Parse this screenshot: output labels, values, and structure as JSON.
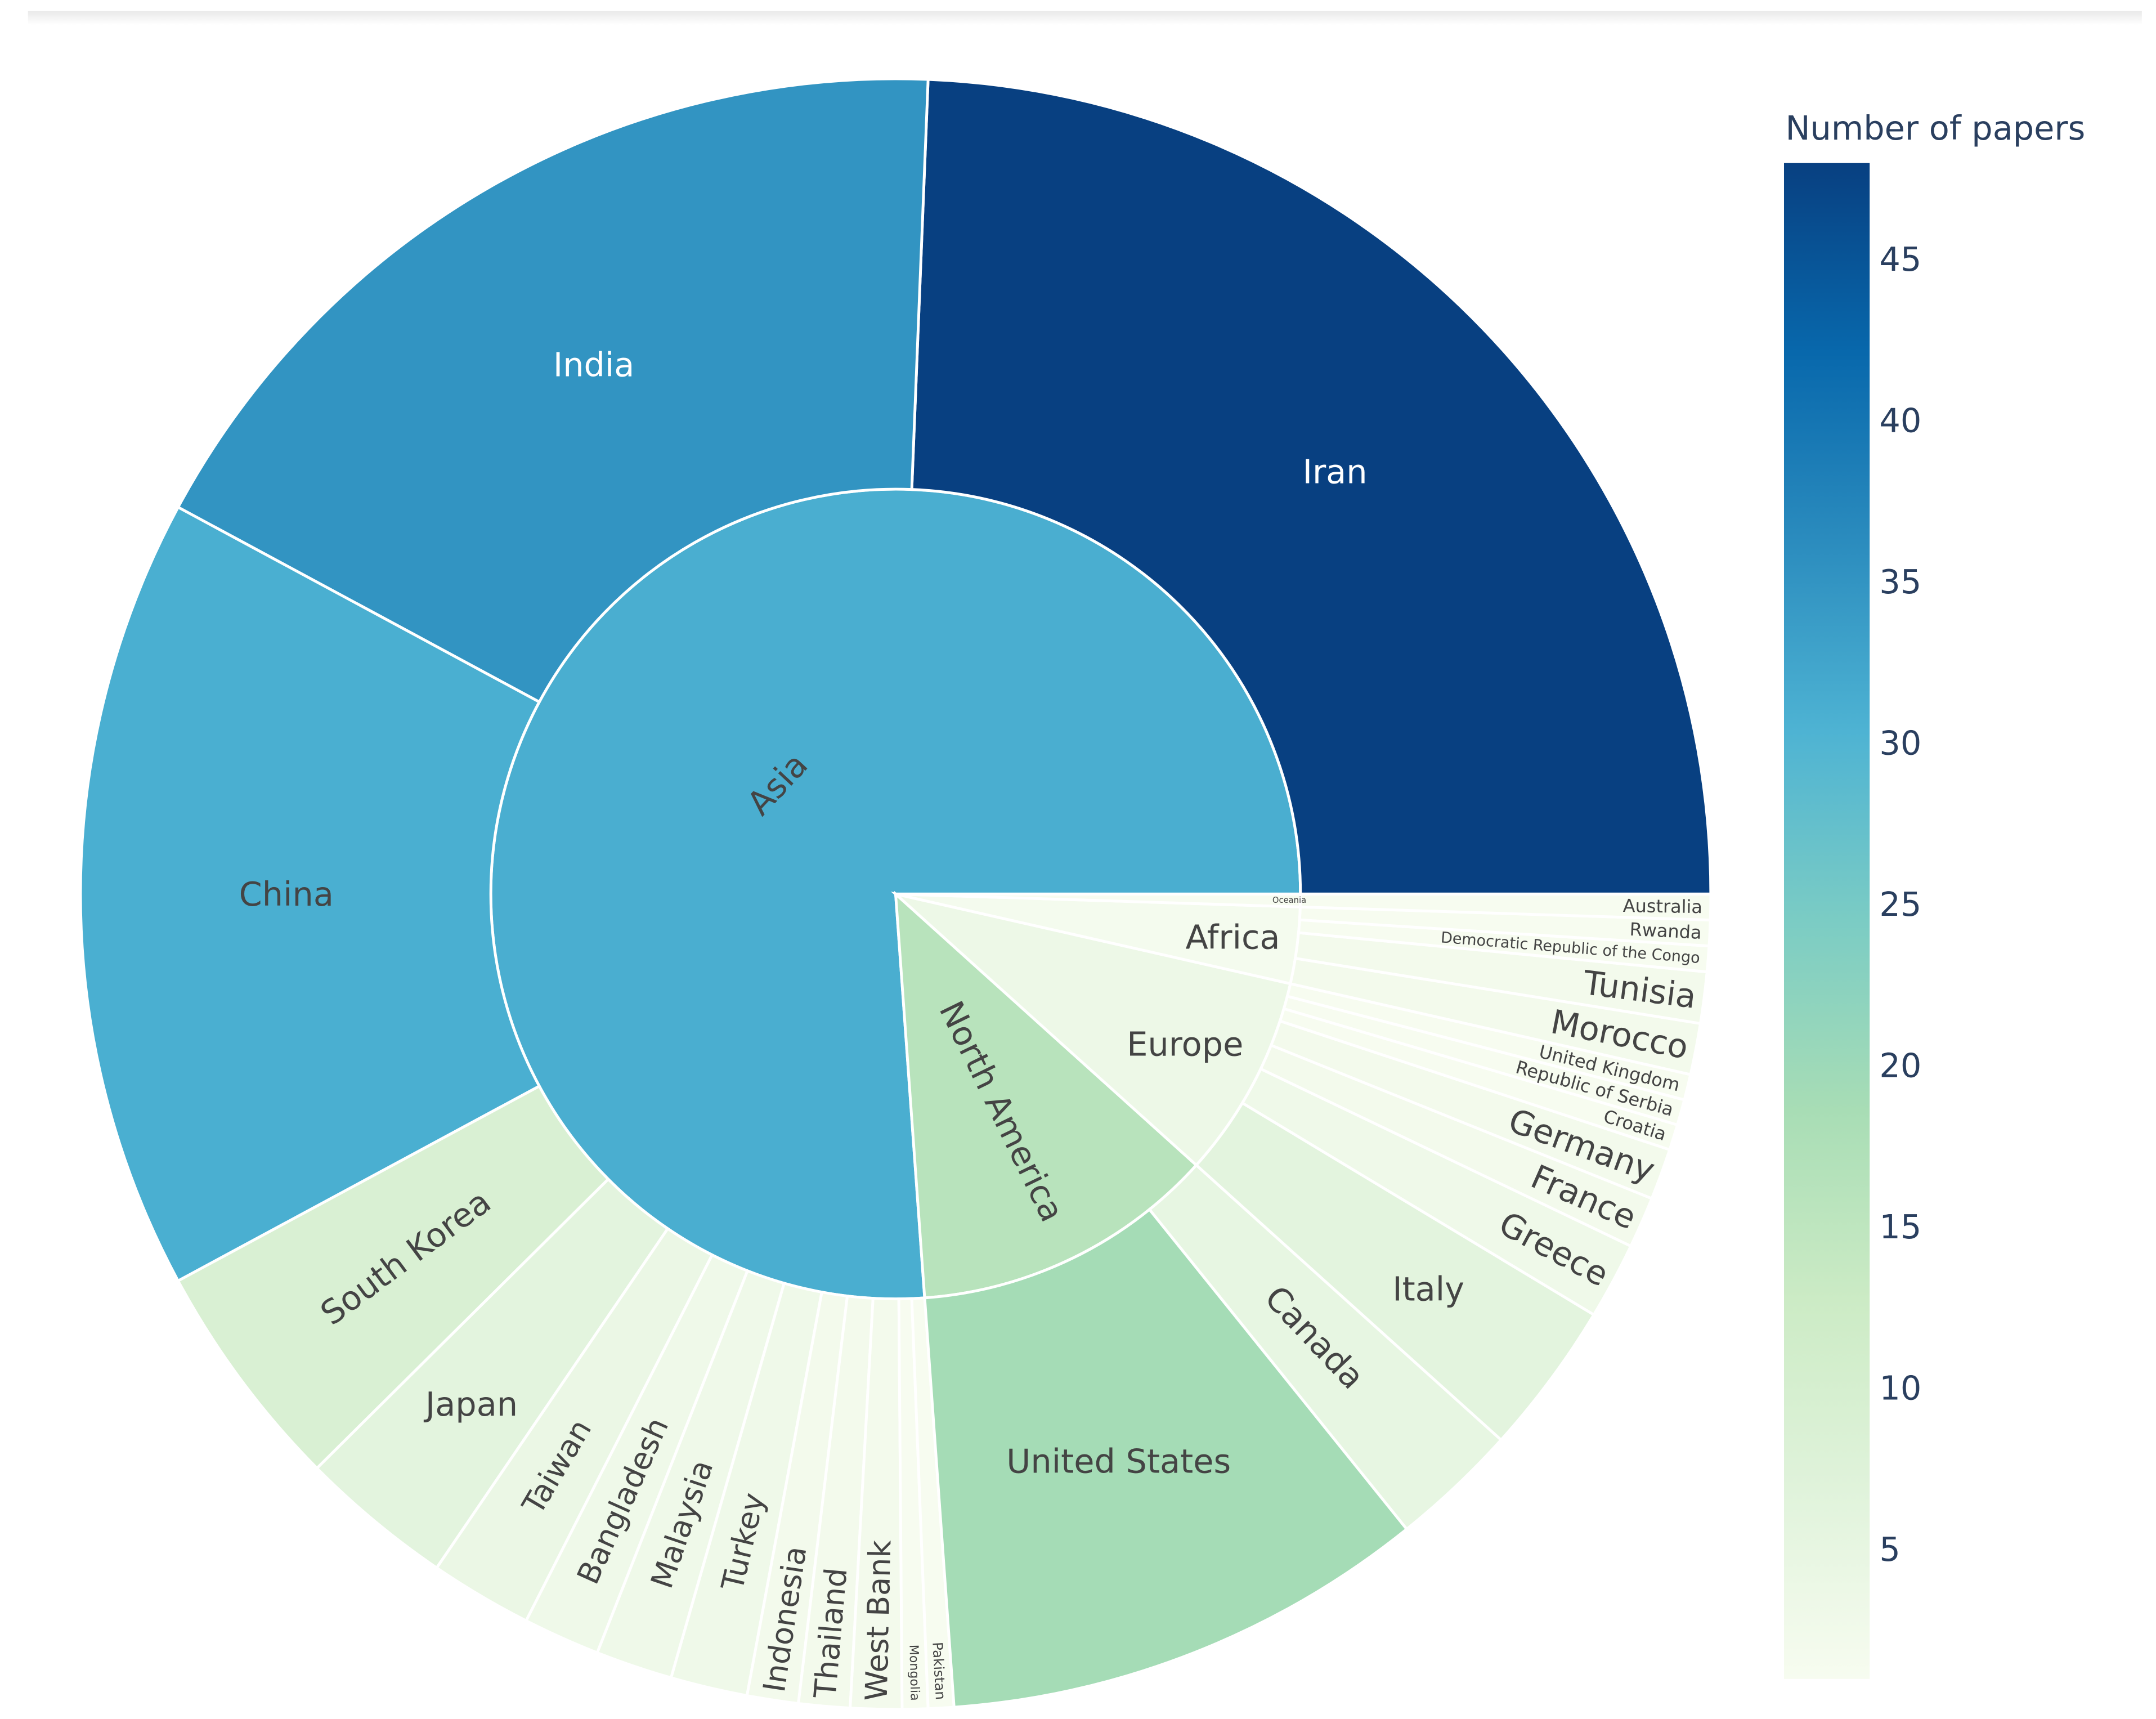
{
  "chart_data": {
    "type": "sunburst",
    "title": "",
    "colorbar": {
      "title": "Number of papers",
      "range": [
        1,
        48
      ],
      "ticks": [
        5,
        10,
        15,
        20,
        25,
        30,
        35,
        40,
        45
      ],
      "colorscale": "GnBu"
    },
    "continents": [
      {
        "name": "Asia",
        "children": [
          {
            "name": "Iran",
            "value": 48
          },
          {
            "name": "India",
            "value": 35
          },
          {
            "name": "China",
            "value": 31
          },
          {
            "name": "South Korea",
            "value": 9
          },
          {
            "name": "Japan",
            "value": 6
          },
          {
            "name": "Taiwan",
            "value": 4
          },
          {
            "name": "Bangladesh",
            "value": 3
          },
          {
            "name": "Malaysia",
            "value": 3
          },
          {
            "name": "Turkey",
            "value": 3
          },
          {
            "name": "Indonesia",
            "value": 2
          },
          {
            "name": "Thailand",
            "value": 2
          },
          {
            "name": "West Bank",
            "value": 2
          },
          {
            "name": "Mongolia",
            "value": 1
          },
          {
            "name": "Pakistan",
            "value": 1
          }
        ]
      },
      {
        "name": "North America",
        "children": [
          {
            "name": "United States",
            "value": 19
          },
          {
            "name": "Canada",
            "value": 5
          }
        ]
      },
      {
        "name": "Europe",
        "children": [
          {
            "name": "Italy",
            "value": 6
          },
          {
            "name": "Greece",
            "value": 3
          },
          {
            "name": "France",
            "value": 2
          },
          {
            "name": "Germany",
            "value": 2
          },
          {
            "name": "Croatia",
            "value": 1
          },
          {
            "name": "Republic of Serbia",
            "value": 1
          },
          {
            "name": "United Kingdom",
            "value": 1
          }
        ]
      },
      {
        "name": "Africa",
        "children": [
          {
            "name": "Morocco",
            "value": 2
          },
          {
            "name": "Tunisia",
            "value": 2
          },
          {
            "name": "Democratic Republic of the Congo",
            "value": 1
          },
          {
            "name": "Rwanda",
            "value": 1
          }
        ]
      },
      {
        "name": "Oceania",
        "children": [
          {
            "name": "Australia",
            "value": 1
          }
        ]
      }
    ]
  }
}
